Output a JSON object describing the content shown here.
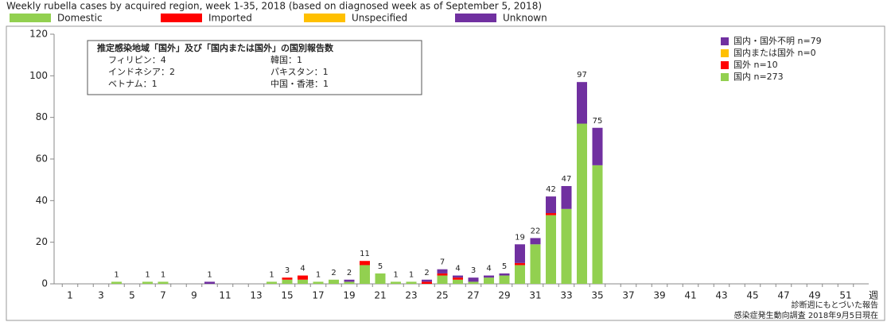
{
  "chart_data": {
    "type": "stacked_bar",
    "title": "Weekly rubella cases by acquired region, week 1-35, 2018 (based on diagnosed week as of September 5, 2018)",
    "categories": [
      1,
      null,
      3,
      null,
      5,
      null,
      7,
      null,
      9,
      null,
      11,
      null,
      13,
      null,
      15,
      null,
      17,
      null,
      19,
      null,
      21,
      null,
      23,
      null,
      25,
      null,
      27,
      null,
      29,
      null,
      31,
      null,
      33,
      null,
      35,
      null,
      37,
      null,
      39,
      null,
      41,
      null,
      43,
      null,
      45,
      null,
      47,
      null,
      49,
      null,
      51,
      null
    ],
    "xlabel": "週",
    "series": [
      {
        "name": "Domestic",
        "color": "#92d050",
        "values": [
          0,
          0,
          0,
          1,
          0,
          1,
          1,
          0,
          0,
          0,
          0,
          0,
          0,
          1,
          2,
          2,
          1,
          2,
          1,
          9,
          5,
          1,
          1,
          0,
          4,
          2,
          1,
          3,
          4,
          9,
          19,
          33,
          36,
          77,
          57,
          null,
          null,
          null,
          null,
          null,
          null,
          null,
          null,
          null,
          null,
          null,
          null,
          null,
          null,
          null,
          null,
          null
        ]
      },
      {
        "name": "Imported",
        "color": "#ff0000",
        "values": [
          0,
          0,
          0,
          0,
          0,
          0,
          0,
          0,
          0,
          0,
          0,
          0,
          0,
          0,
          1,
          2,
          0,
          0,
          0,
          2,
          0,
          0,
          0,
          1,
          1,
          1,
          0,
          0,
          0,
          1,
          0,
          1,
          0,
          0,
          0,
          null,
          null,
          null,
          null,
          null,
          null,
          null,
          null,
          null,
          null,
          null,
          null,
          null,
          null,
          null,
          null,
          null
        ]
      },
      {
        "name": "Unspecified",
        "color": "#ffc000",
        "values": [
          0,
          0,
          0,
          0,
          0,
          0,
          0,
          0,
          0,
          0,
          0,
          0,
          0,
          0,
          0,
          0,
          0,
          0,
          0,
          0,
          0,
          0,
          0,
          0,
          0,
          0,
          0,
          0,
          0,
          0,
          0,
          0,
          0,
          0,
          0,
          null,
          null,
          null,
          null,
          null,
          null,
          null,
          null,
          null,
          null,
          null,
          null,
          null,
          null,
          null,
          null,
          null
        ]
      },
      {
        "name": "Unknown",
        "color": "#7030a0",
        "values": [
          0,
          0,
          0,
          0,
          0,
          0,
          0,
          0,
          0,
          1,
          0,
          0,
          0,
          0,
          0,
          0,
          0,
          0,
          1,
          0,
          0,
          0,
          0,
          1,
          2,
          1,
          2,
          1,
          1,
          9,
          3,
          8,
          11,
          20,
          18,
          null,
          null,
          null,
          null,
          null,
          null,
          null,
          null,
          null,
          null,
          null,
          null,
          null,
          null,
          null,
          null,
          null
        ]
      }
    ],
    "totals": [
      null,
      null,
      null,
      1,
      null,
      1,
      1,
      null,
      null,
      1,
      null,
      null,
      null,
      1,
      3,
      4,
      1,
      2,
      2,
      11,
      5,
      1,
      1,
      2,
      7,
      4,
      3,
      4,
      5,
      19,
      22,
      42,
      47,
      97,
      75,
      null,
      null,
      null,
      null,
      null,
      null,
      null,
      null,
      null,
      null,
      null,
      null,
      null,
      null,
      null,
      null,
      null
    ],
    "ylim": [
      0,
      120
    ],
    "yticks": [
      0,
      20,
      40,
      60,
      80,
      100,
      120
    ],
    "legend2": [
      {
        "label": "国内・国外不明 n=79",
        "color": "#7030a0"
      },
      {
        "label": "国内または国外 n=0",
        "color": "#ffc000"
      },
      {
        "label": "国外 n=10",
        "color": "#ff0000"
      },
      {
        "label": "国内 n=273",
        "color": "#92d050"
      }
    ],
    "annotation": {
      "title": "推定感染地域「国外」及び「国内または国外」の国別報告数",
      "rows": [
        [
          "フィリピン：4",
          "韓国：1"
        ],
        [
          "インドネシア：2",
          "パキスタン：1"
        ],
        [
          "ベトナム：1",
          "中国・香港：1"
        ]
      ]
    },
    "footnotes": [
      "診断週にもとづいた報告",
      "感染症発生動向調査 2018年9月5日現在"
    ]
  }
}
